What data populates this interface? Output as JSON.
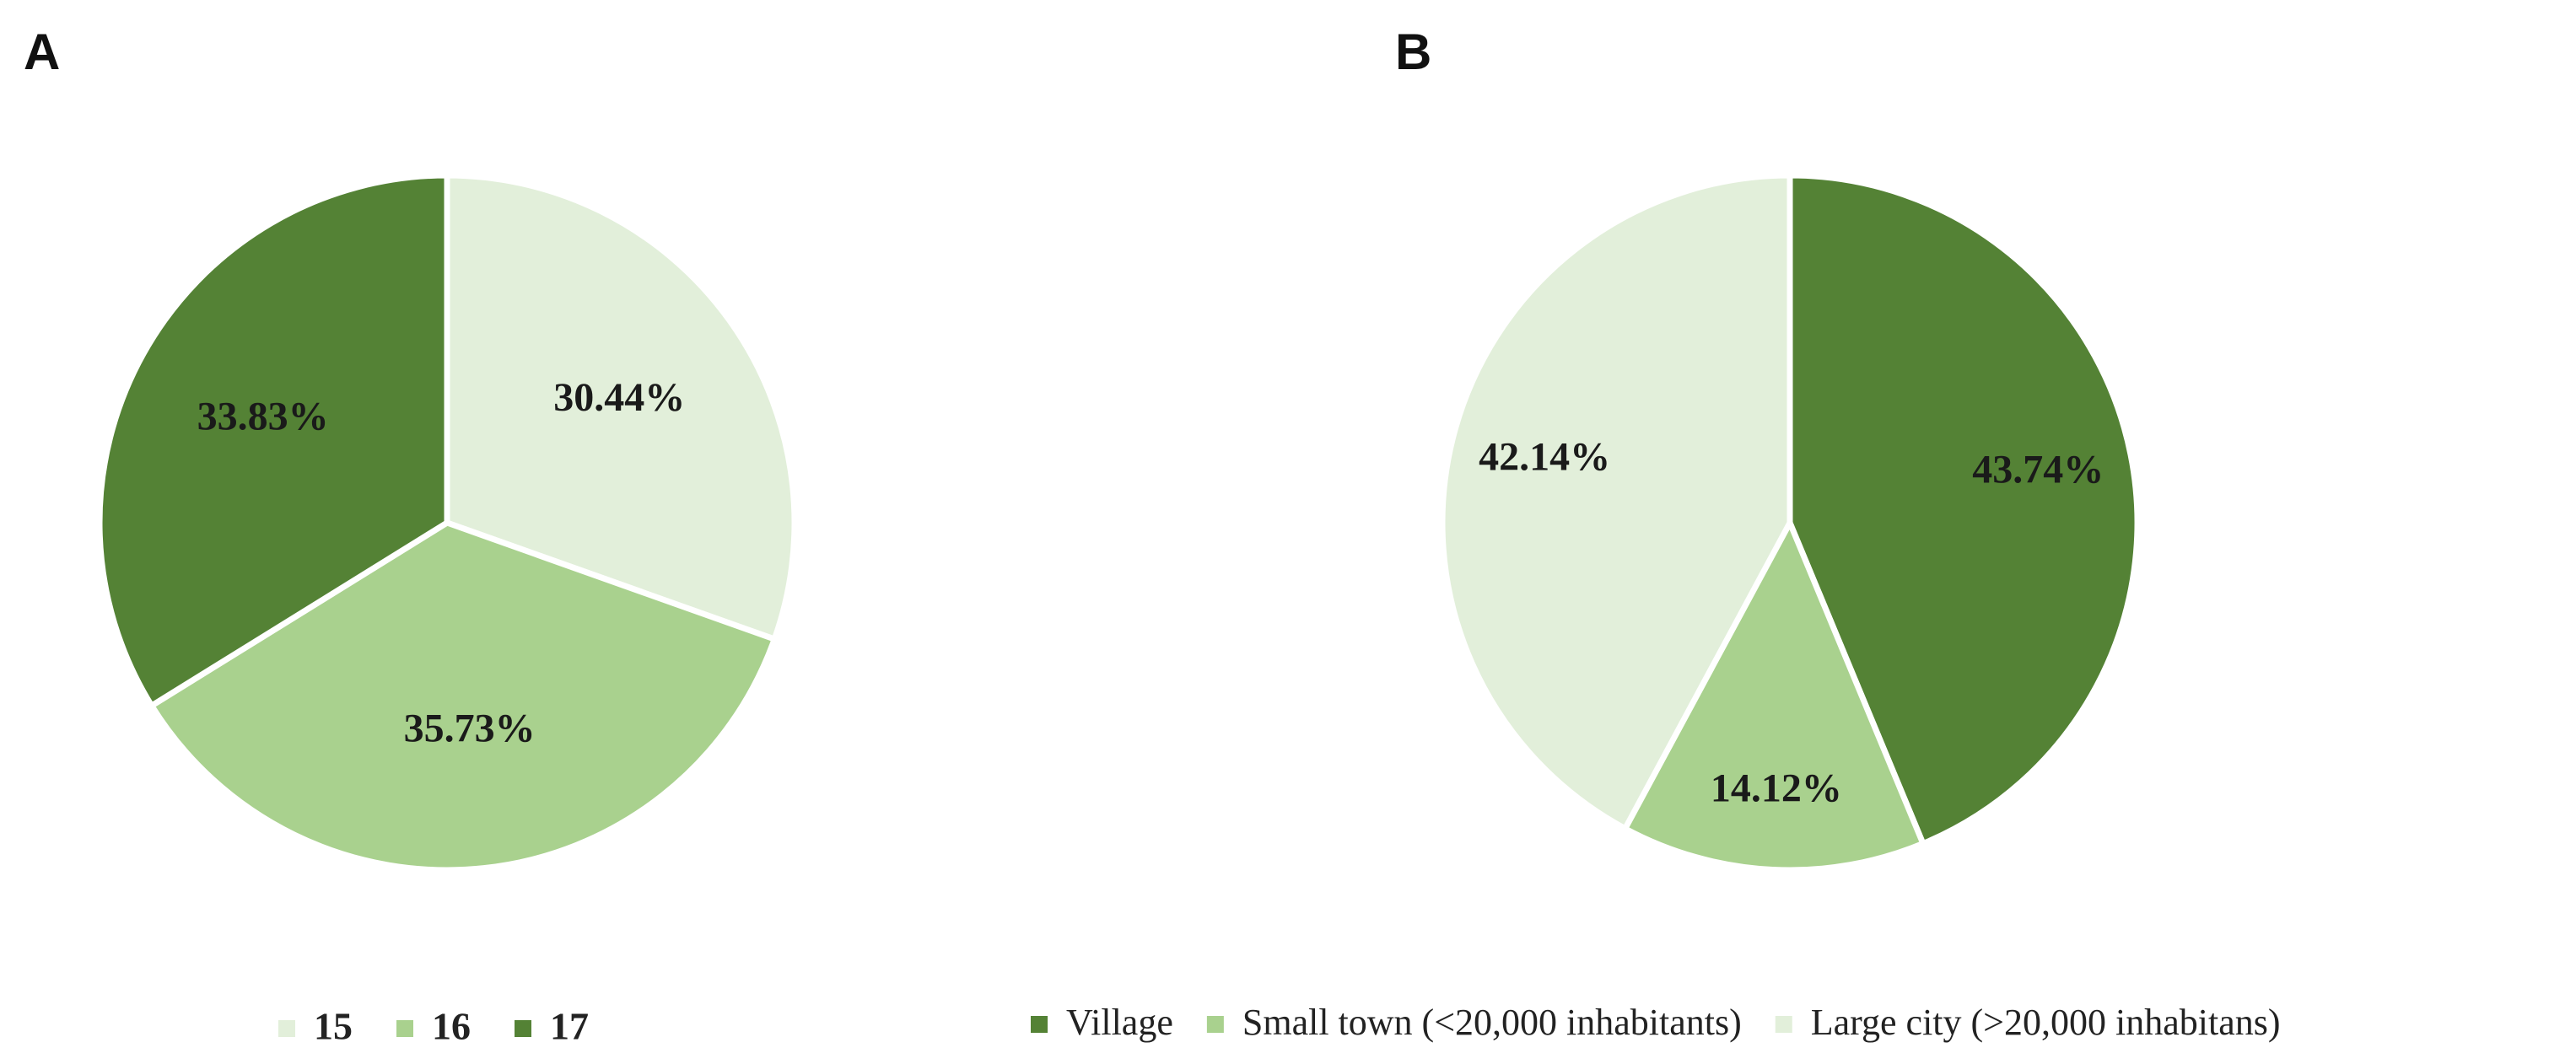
{
  "colors": {
    "dark": "#548235",
    "medium": "#a9d18e",
    "light": "#e2efda",
    "separator": "#ffffff"
  },
  "chart_data": [
    {
      "type": "pie",
      "panel": "A",
      "slices": [
        {
          "name": "15",
          "value": 30.44,
          "label": "30.44%",
          "color_key": "light"
        },
        {
          "name": "16",
          "value": 35.73,
          "label": "35.73%",
          "color_key": "medium"
        },
        {
          "name": "17",
          "value": 33.83,
          "label": "33.83%",
          "color_key": "dark"
        }
      ],
      "start": "12 o'clock",
      "direction": "clockwise",
      "legend": {
        "position": "bottom",
        "entries": [
          "15",
          "16",
          "17"
        ]
      }
    },
    {
      "type": "pie",
      "panel": "B",
      "slices": [
        {
          "name": "Village",
          "value": 43.74,
          "label": "43.74%",
          "color_key": "dark"
        },
        {
          "name": "Small town (<20,000 inhabitants)",
          "value": 14.12,
          "label": "14.12%",
          "color_key": "medium"
        },
        {
          "name": "Large city (>20,000 inhabitans)",
          "value": 42.14,
          "label": "42.14%",
          "color_key": "light"
        }
      ],
      "start": "12 o'clock",
      "direction": "clockwise",
      "legend": {
        "position": "bottom",
        "entries": [
          "Village",
          "Small town (<20,000 inhabitants)",
          "Large city (>20,000 inhabitans)"
        ]
      }
    }
  ]
}
